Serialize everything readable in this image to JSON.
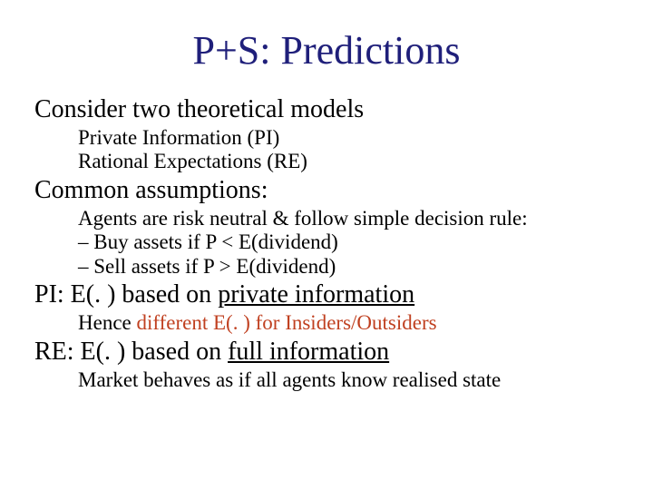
{
  "title": {
    "text": "P+S: Predictions",
    "color": "#1f1f7a",
    "fontsize": 44
  },
  "heading1": "Consider two theoretical models",
  "sub1a": "Private Information (PI)",
  "sub1b": "Rational Expectations (RE)",
  "heading2": "Common assumptions:",
  "sub2a": "Agents are risk neutral & follow simple decision rule:",
  "sub2b": "–  Buy assets if P < E(dividend)",
  "sub2c": "–  Sell assets if P > E(dividend)",
  "heading3_pre": "PI: E(. ) based on ",
  "heading3_ul": "private information",
  "sub3_pre": "Hence ",
  "sub3_accent": "different E(. ) for Insiders/Outsiders",
  "heading4_pre": "RE: E(. ) based on ",
  "heading4_ul": "full information",
  "sub4": "Market behaves as if all agents know realised state",
  "accent_color": "#c04020",
  "text_color": "#000000",
  "background_color": "#ffffff",
  "body_fontsize": 28,
  "sub_fontsize": 23
}
